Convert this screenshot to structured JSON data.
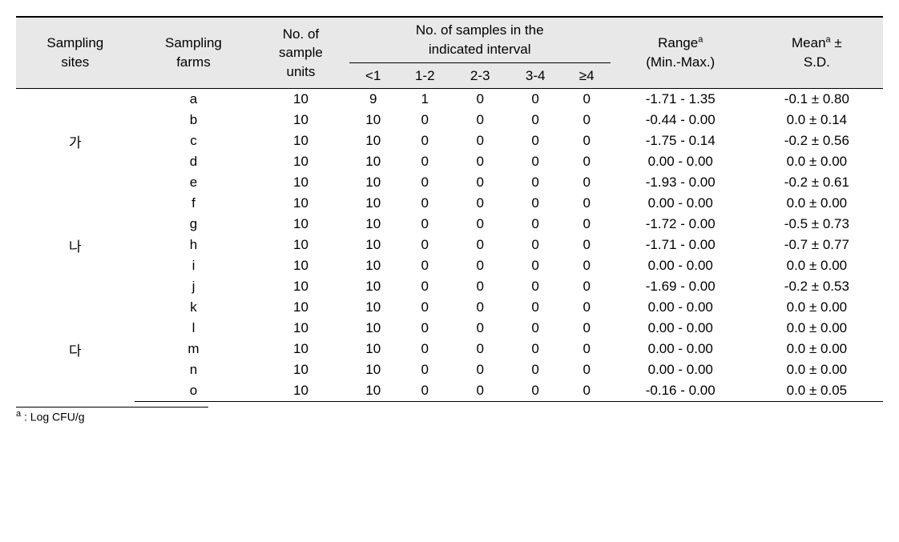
{
  "table": {
    "headers": {
      "sites": "Sampling\nsites",
      "farms": "Sampling\nfarms",
      "units": "No. of\nsample\nunits",
      "interval_title": "No. of samples in the\nindicated interval",
      "interval_cols": [
        "<1",
        "1-2",
        "2-3",
        "3-4",
        "≥4"
      ],
      "range": "Rangeᵃ\n(Min.-Max.)",
      "mean": "Meanᵃ ±\nS.D."
    },
    "groups": [
      {
        "site": "가",
        "rows": [
          {
            "farm": "a",
            "units": "10",
            "intervals": [
              "9",
              "1",
              "0",
              "0",
              "0"
            ],
            "range": "-1.71 - 1.35",
            "mean": "-0.1 ± 0.80"
          },
          {
            "farm": "b",
            "units": "10",
            "intervals": [
              "10",
              "0",
              "0",
              "0",
              "0"
            ],
            "range": "-0.44 - 0.00",
            "mean": "0.0 ± 0.14"
          },
          {
            "farm": "c",
            "units": "10",
            "intervals": [
              "10",
              "0",
              "0",
              "0",
              "0"
            ],
            "range": "-1.75 - 0.14",
            "mean": "-0.2 ± 0.56"
          },
          {
            "farm": "d",
            "units": "10",
            "intervals": [
              "10",
              "0",
              "0",
              "0",
              "0"
            ],
            "range": "0.00 - 0.00",
            "mean": "0.0 ± 0.00"
          },
          {
            "farm": "e",
            "units": "10",
            "intervals": [
              "10",
              "0",
              "0",
              "0",
              "0"
            ],
            "range": "-1.93 - 0.00",
            "mean": "-0.2 ± 0.61"
          }
        ]
      },
      {
        "site": "나",
        "rows": [
          {
            "farm": "f",
            "units": "10",
            "intervals": [
              "10",
              "0",
              "0",
              "0",
              "0"
            ],
            "range": "0.00 - 0.00",
            "mean": "0.0 ± 0.00"
          },
          {
            "farm": "g",
            "units": "10",
            "intervals": [
              "10",
              "0",
              "0",
              "0",
              "0"
            ],
            "range": "-1.72 - 0.00",
            "mean": "-0.5 ± 0.73"
          },
          {
            "farm": "h",
            "units": "10",
            "intervals": [
              "10",
              "0",
              "0",
              "0",
              "0"
            ],
            "range": "-1.71 - 0.00",
            "mean": "-0.7 ± 0.77"
          },
          {
            "farm": "i",
            "units": "10",
            "intervals": [
              "10",
              "0",
              "0",
              "0",
              "0"
            ],
            "range": "0.00 - 0.00",
            "mean": "0.0 ± 0.00"
          },
          {
            "farm": "j",
            "units": "10",
            "intervals": [
              "10",
              "0",
              "0",
              "0",
              "0"
            ],
            "range": "-1.69 - 0.00",
            "mean": "-0.2 ± 0.53"
          }
        ]
      },
      {
        "site": "다",
        "rows": [
          {
            "farm": "k",
            "units": "10",
            "intervals": [
              "10",
              "0",
              "0",
              "0",
              "0"
            ],
            "range": "0.00 - 0.00",
            "mean": "0.0 ± 0.00"
          },
          {
            "farm": "l",
            "units": "10",
            "intervals": [
              "10",
              "0",
              "0",
              "0",
              "0"
            ],
            "range": "0.00 - 0.00",
            "mean": "0.0 ± 0.00"
          },
          {
            "farm": "m",
            "units": "10",
            "intervals": [
              "10",
              "0",
              "0",
              "0",
              "0"
            ],
            "range": "0.00 - 0.00",
            "mean": "0.0 ± 0.00"
          },
          {
            "farm": "n",
            "units": "10",
            "intervals": [
              "10",
              "0",
              "0",
              "0",
              "0"
            ],
            "range": "0.00 - 0.00",
            "mean": "0.0 ± 0.00"
          },
          {
            "farm": "o",
            "units": "10",
            "intervals": [
              "10",
              "0",
              "0",
              "0",
              "0"
            ],
            "range": "-0.16 - 0.00",
            "mean": "0.0 ± 0.05"
          }
        ]
      }
    ],
    "footnote": "ᵃ : Log CFU/g",
    "styling": {
      "header_bg": "#e8e8e8",
      "border_color": "#000000",
      "font_family": "Arial",
      "header_fontsize": 17,
      "body_fontsize": 17,
      "footnote_fontsize": 14
    }
  }
}
